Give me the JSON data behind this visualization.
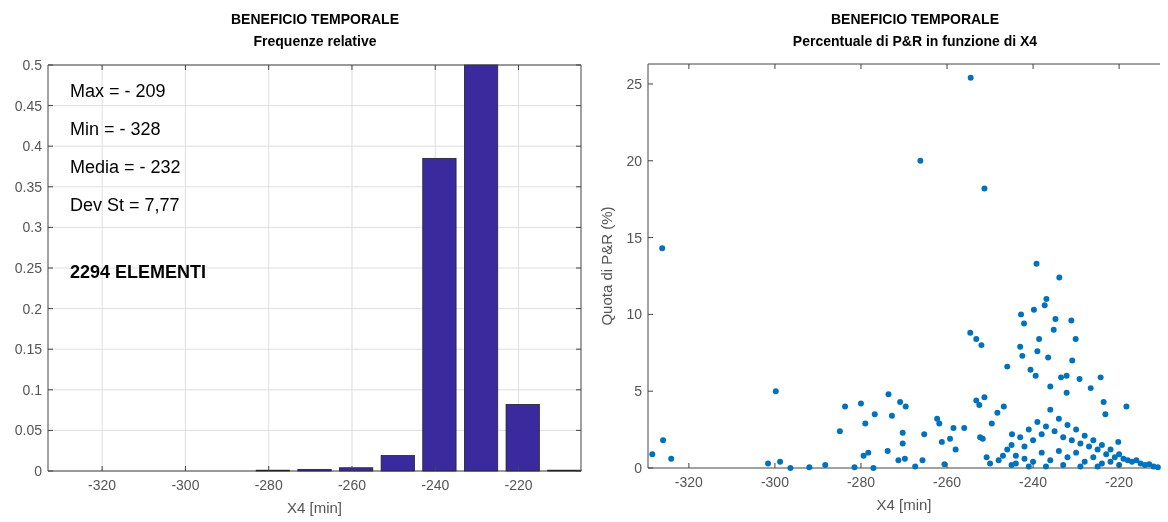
{
  "chart_data": [
    {
      "type": "bar",
      "title": "BENEFICIO TEMPORALE",
      "subtitle": "Frequenze relative",
      "xlabel": "X4 [min]",
      "x": [
        -329,
        -319,
        -309,
        -299,
        -289,
        -279,
        -269,
        -259,
        -249,
        -239,
        -229,
        -219,
        -209
      ],
      "values": [
        0,
        0,
        0,
        0,
        0,
        0.001,
        0.002,
        0.004,
        0.019,
        0.385,
        0.5,
        0.082,
        0.001
      ],
      "color": "#3a2a9e",
      "xlim": [
        -333,
        -205
      ],
      "xticks": [
        -320,
        -300,
        -280,
        -260,
        -240,
        -220
      ],
      "ylim": [
        0,
        0.5
      ],
      "yticks": [
        0,
        0.05,
        0.1,
        0.15,
        0.2,
        0.25,
        0.3,
        0.35,
        0.4,
        0.45,
        0.5
      ],
      "grid": true,
      "annotations": [
        "Max = - 209",
        "Min = - 328",
        "Media = - 232",
        "Dev St = 7,77",
        "2294 ELEMENTI"
      ]
    },
    {
      "type": "scatter",
      "title": "BENEFICIO TEMPORALE",
      "subtitle": "Percentuale di P&R in funzione di X4",
      "xlabel": "X4 [min]",
      "ylabel": "Quota di P&R (%)",
      "x": [
        -328.5,
        -326.2,
        -326.0,
        -324.1,
        -301.6,
        -299.8,
        -298.8,
        -296.4,
        -292,
        -288.3,
        -284.9,
        -283.7,
        -281.5,
        -280,
        -279.4,
        -279,
        -278.3,
        -277.1,
        -276.8,
        -273.8,
        -273.6,
        -272.8,
        -271.3,
        -270.9,
        -270.3,
        -270.3,
        -269.8,
        -269.6,
        -267.4,
        -266.2,
        -265.7,
        -265.3,
        -262.3,
        -261.8,
        -261.2,
        -260.6,
        -259.3,
        -258.5,
        -258,
        -256,
        -254.6,
        -254.5,
        -253.2,
        -253.2,
        -252.5,
        -252,
        -251.3,
        -251.3,
        -252.3,
        -251.7,
        -250.8,
        -249.6,
        -248.3,
        -246.8,
        -246,
        -244.9,
        -243.0,
        -242.8,
        -242.5,
        -242.1,
        -240.6,
        -239.8,
        -239.4,
        -239.2,
        -239,
        -238.6,
        -237.3,
        -236.9,
        -236.5,
        -236,
        -235.2,
        -234.8,
        -233.9,
        -233.5,
        -232.2,
        -232.2,
        -231.1,
        -230.9,
        -230.1,
        -229.2,
        -226.6,
        -224.3,
        -223.6,
        -223.2,
        -220.2,
        -218.3,
        -246,
        -245,
        -244,
        -243,
        -242,
        -241,
        -240,
        -239,
        -238,
        -237,
        -236,
        -235,
        -234,
        -233,
        -232,
        -231,
        -230,
        -229,
        -228,
        -227,
        -226,
        -225,
        -224,
        -223,
        -222,
        -221,
        -220,
        -219,
        -218,
        -217,
        -216,
        -215,
        -214,
        -213,
        -212,
        -211,
        -244,
        -242,
        -240,
        -238,
        -236,
        -234,
        -232,
        -230,
        -228,
        -226,
        -224,
        -222,
        -220,
        -237,
        -233,
        -229,
        -225,
        -241,
        -248,
        -250,
        -247,
        -245
      ],
      "series": [
        {
          "color": "#0072bd",
          "values": [
            0.9,
            14.3,
            1.8,
            0.6,
            0.3,
            5.0,
            0.4,
            0,
            0.05,
            0.2,
            2.4,
            4.0,
            0.05,
            4.2,
            0.8,
            2.9,
            1.0,
            0,
            3.5,
            1.1,
            4.8,
            3.4,
            0.5,
            4.3,
            2.3,
            1.6,
            0.6,
            4.0,
            0.1,
            20.0,
            0.5,
            2.2,
            3.2,
            2.9,
            1.7,
            0.25,
            1.9,
            2.6,
            1.2,
            2.6,
            8.8,
            25.4,
            8.4,
            4.4,
            4.1,
            8.0,
            18.2,
            4.6,
            2.0,
            1.9,
            0.7,
            2.9,
            3.6,
            4.0,
            6.6,
            2.2,
            7.9,
            10.0,
            7.3,
            9.4,
            6.4,
            10.3,
            6.0,
            13.3,
            7.6,
            8.4,
            10.6,
            11.0,
            7.2,
            5.3,
            9.0,
            9.7,
            12.4,
            5.9,
            6.0,
            4.9,
            9.6,
            7.0,
            8.4,
            5.8,
            5.2,
            5.9,
            4.3,
            3.5,
            1.7,
            4.0,
            1.2,
            1.5,
            0.8,
            2.0,
            1.4,
            2.5,
            1.8,
            3.0,
            2.2,
            2.7,
            3.8,
            2.4,
            3.2,
            2.0,
            2.8,
            1.8,
            2.5,
            1.6,
            2.1,
            1.4,
            1.8,
            1.2,
            1.5,
            0.9,
            1.2,
            0.7,
            0.9,
            0.6,
            0.5,
            0.4,
            0.5,
            0.3,
            0.2,
            0.25,
            0.1,
            0.05,
            0.3,
            0.6,
            0.4,
            1.0,
            0.5,
            1.1,
            0.7,
            1.0,
            0.4,
            0.7,
            0.3,
            0.4,
            0.2,
            0.1,
            0.2,
            0.1,
            0.1,
            0.1,
            0.5,
            0.3,
            0.8,
            0.2
          ]
        }
      ],
      "xlim": [
        -329.5,
        -210.5
      ],
      "xticks": [
        -320,
        -300,
        -280,
        -260,
        -240,
        -220
      ],
      "ylim": [
        0,
        26.3
      ],
      "yticks": [
        0,
        5,
        10,
        15,
        20,
        25
      ],
      "grid": false,
      "marker": "circle"
    }
  ]
}
